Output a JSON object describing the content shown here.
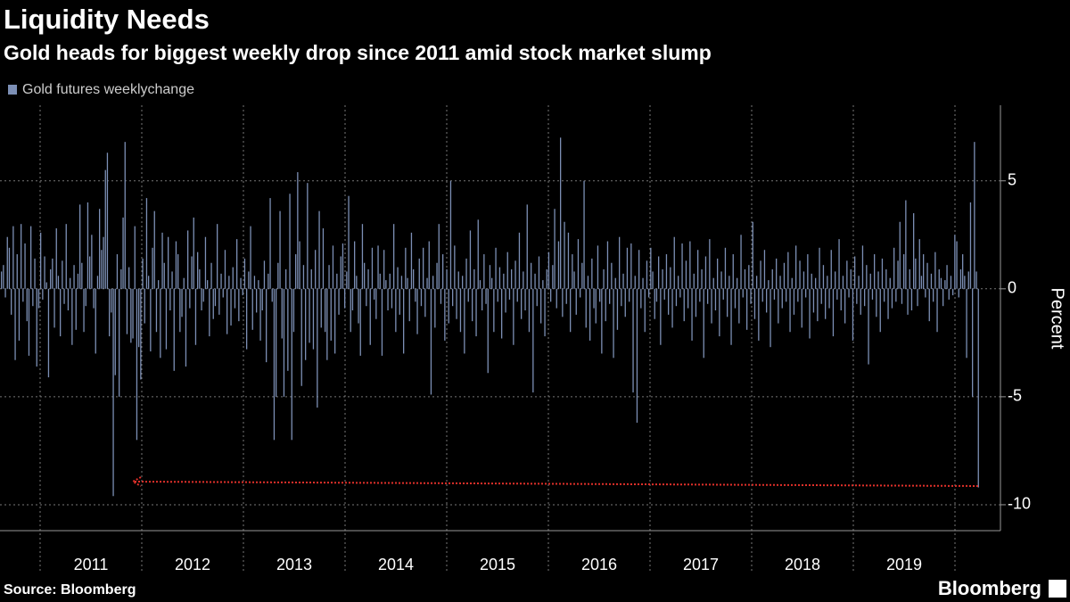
{
  "chart_data": {
    "type": "bar",
    "title": "Liquidity Needs",
    "subtitle": "Gold heads for biggest weekly drop since 2011 amid stock market slump",
    "y_axis_label": "Percent",
    "source": "Source: Bloomberg",
    "brand": "Bloomberg",
    "year_labels": [
      "2011",
      "2012",
      "2013",
      "2014",
      "2015",
      "2016",
      "2017",
      "2018",
      "2019"
    ],
    "ylim": [
      -11.2,
      8.5
    ],
    "yticks": [
      -10,
      -5,
      0,
      5
    ],
    "grid": true,
    "series": [
      {
        "name": "Gold futures weeklychange",
        "color": "#7c8fb5",
        "values": [
          0.8,
          1.1,
          -0.4,
          2.4,
          1.9,
          -1.2,
          2.9,
          -3.3,
          1.6,
          -2.4,
          3.0,
          -0.6,
          2.1,
          -1.5,
          -3.1,
          2.9,
          -0.8,
          1.4,
          -3.6,
          -0.9,
          2.6,
          -0.5,
          1.5,
          0.3,
          -4.1,
          0.9,
          1.4,
          -1.8,
          2.8,
          0.6,
          -2.2,
          1.3,
          -0.7,
          3.0,
          -1.0,
          0.5,
          -2.6,
          1.1,
          -1.9,
          0.7,
          3.9,
          1.2,
          -2.0,
          -0.8,
          4.0,
          1.5,
          2.5,
          -0.9,
          -3.0,
          0.6,
          3.7,
          1.8,
          2.4,
          5.5,
          6.3,
          -2.2,
          -1.1,
          -9.6,
          -4.0,
          1.6,
          -5.0,
          0.9,
          3.3,
          6.8,
          -2.1,
          1.0,
          -2.5,
          -2.3,
          2.9,
          -7.0,
          -2.7,
          -4.2,
          1.4,
          -1.6,
          4.2,
          0.6,
          -2.9,
          1.9,
          3.6,
          -2.0,
          0.4,
          -3.2,
          2.6,
          1.2,
          -2.8,
          2.4,
          -1.0,
          0.8,
          -3.8,
          2.2,
          1.6,
          -2.0,
          -1.3,
          0.5,
          -3.6,
          2.7,
          -0.9,
          1.5,
          3.3,
          -2.6,
          1.7,
          0.9,
          -1.0,
          -0.6,
          2.4,
          0.4,
          -2.2,
          1.2,
          -1.4,
          -0.8,
          3.0,
          -1.2,
          0.7,
          -0.4,
          1.8,
          -2.1,
          0.6,
          -1.7,
          1.0,
          -0.9,
          2.3,
          -1.5,
          0.5,
          -0.3,
          1.4,
          -2.8,
          0.8,
          2.9,
          -1.9,
          0.6,
          -1.1,
          0.4,
          -2.4,
          -1.0,
          1.3,
          -3.4,
          0.7,
          4.2,
          -0.6,
          -7.0,
          -5.0,
          1.2,
          3.6,
          -2.3,
          -5.0,
          0.9,
          -3.8,
          4.4,
          -7.0,
          -2.0,
          1.6,
          5.4,
          2.2,
          -4.5,
          1.1,
          -3.3,
          4.9,
          -2.5,
          0.9,
          -2.8,
          1.8,
          -5.5,
          3.6,
          -1.8,
          2.8,
          -2.0,
          -3.3,
          1.1,
          -2.4,
          2.0,
          -3.0,
          0.7,
          -1.2,
          1.5,
          2.1,
          -0.9,
          0.8,
          4.3,
          -2.0,
          -1.0,
          2.2,
          0.6,
          -1.6,
          -3.1,
          3.0,
          1.2,
          -0.8,
          0.9,
          -2.6,
          1.9,
          -0.5,
          -1.4,
          2.0,
          0.7,
          -3.1,
          1.8,
          0.4,
          -1.0,
          0.7,
          -0.9,
          3.0,
          -2.0,
          1.0,
          -1.2,
          0.6,
          -3.0,
          1.9,
          0.5,
          -1.5,
          2.6,
          0.9,
          -0.6,
          -2.1,
          1.4,
          -0.8,
          1.9,
          -1.3,
          0.5,
          2.2,
          -4.9,
          0.6,
          -1.8,
          1.2,
          3.0,
          -0.7,
          1.6,
          -2.4,
          0.9,
          -1.6,
          5.0,
          -0.8,
          2.0,
          -1.4,
          0.8,
          -2.0,
          0.6,
          -3.0,
          1.4,
          -0.6,
          2.7,
          -1.5,
          0.9,
          -2.2,
          3.2,
          0.4,
          -1.0,
          1.6,
          -0.7,
          -3.9,
          1.1,
          0.5,
          -2.0,
          1.9,
          -0.6,
          1.0,
          -2.3,
          0.7,
          -1.1,
          1.7,
          -0.5,
          0.9,
          -2.6,
          1.3,
          -0.6,
          2.6,
          -1.4,
          0.8,
          -1.0,
          3.9,
          -2.0,
          1.2,
          -4.8,
          0.7,
          -0.8,
          1.5,
          -1.6,
          0.4,
          -2.2,
          0.9,
          1.7,
          -0.6,
          1.1,
          3.7,
          -0.9,
          2.2,
          7.0,
          -1.3,
          3.1,
          -0.7,
          2.6,
          -2.0,
          1.6,
          0.8,
          -1.2,
          2.3,
          -0.4,
          1.2,
          5.0,
          -1.8,
          0.6,
          -2.4,
          1.4,
          -0.9,
          -1.6,
          2.0,
          -0.6,
          -3.0,
          0.9,
          -1.5,
          2.2,
          -0.7,
          1.2,
          -3.2,
          0.5,
          -1.9,
          2.4,
          -0.8,
          0.7,
          -1.3,
          1.9,
          -0.6,
          2.1,
          -4.8,
          0.6,
          -6.2,
          1.8,
          -0.9,
          0.5,
          -2.0,
          1.3,
          -0.4,
          1.9,
          0.8,
          -1.4,
          -0.6,
          1.5,
          -2.6,
          0.9,
          -0.5,
          1.6,
          -1.2,
          1.0,
          -1.8,
          2.4,
          -0.8,
          0.6,
          -0.4,
          2.1,
          -1.5,
          1.3,
          -0.9,
          2.2,
          -2.4,
          0.7,
          -1.3,
          1.8,
          -0.6,
          0.9,
          -3.2,
          1.5,
          -0.7,
          2.3,
          -1.6,
          0.5,
          -1.0,
          1.4,
          -2.2,
          0.8,
          -0.5,
          1.9,
          -1.3,
          0.6,
          -2.6,
          1.6,
          -0.9,
          0.5,
          -1.6,
          2.5,
          -0.4,
          0.9,
          -1.9,
          1.1,
          -0.7,
          3.1,
          -1.4,
          0.6,
          -2.4,
          1.3,
          -0.6,
          1.8,
          -1.1,
          0.4,
          -2.7,
          0.9,
          -0.5,
          1.4,
          -1.6,
          0.6,
          -0.9,
          1.2,
          -0.6,
          1.7,
          -2.0,
          0.5,
          -1.2,
          2.0,
          -0.6,
          1.3,
          -1.8,
          0.8,
          -0.4,
          1.6,
          -2.3,
          0.7,
          -1.1,
          0.5,
          -1.5,
          1.9,
          -0.7,
          1.1,
          -1.4,
          0.6,
          -0.9,
          1.8,
          -2.2,
          0.8,
          -0.5,
          2.3,
          -1.0,
          0.6,
          -1.6,
          1.3,
          -0.4,
          0.9,
          -2.4,
          1.5,
          -0.7,
          0.6,
          -1.2,
          2.0,
          -0.8,
          1.1,
          -3.5,
          0.7,
          -0.5,
          1.6,
          -1.3,
          0.8,
          -2.0,
          1.4,
          -0.6,
          0.9,
          -1.4,
          0.5,
          -0.9,
          1.9,
          -0.6,
          1.3,
          3.1,
          -0.7,
          1.6,
          4.1,
          -1.2,
          0.9,
          -1.0,
          3.5,
          1.4,
          -0.8,
          2.3,
          0.6,
          1.6,
          -0.4,
          1.2,
          -1.5,
          0.7,
          -0.6,
          1.7,
          -2.0,
          0.9,
          0.5,
          -0.8,
          0.4,
          1.1,
          -0.5,
          0.6,
          -0.3,
          2.5,
          2.2,
          -0.4,
          0.9,
          1.6,
          0.6,
          -3.2,
          0.8,
          4.0,
          -5.0,
          6.8,
          0.8,
          -9.2
        ]
      }
    ]
  }
}
